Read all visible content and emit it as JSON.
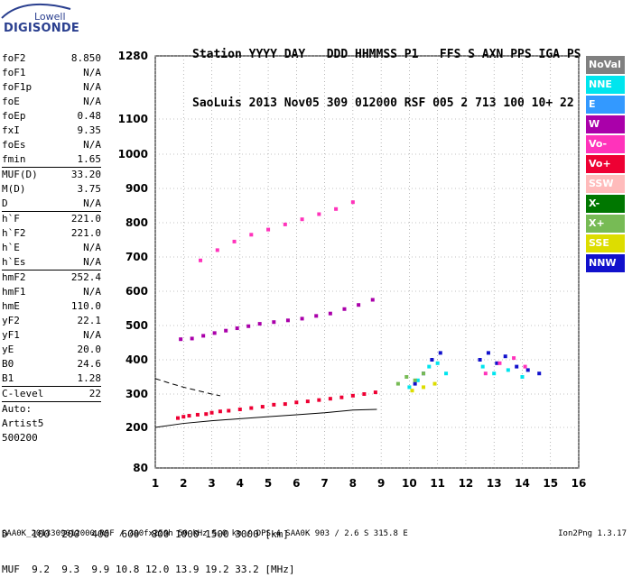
{
  "logo": {
    "line1": "Lowell",
    "line2": "DIGISONDE"
  },
  "header": {
    "row1": "Station YYYY DAY   DDD HHMMSS P1   FFS S AXN PPS IGA PS",
    "row2": "SaoLuis 2013 Nov05 309 012000 RSF 005 2 713 100 10+ 22"
  },
  "params": [
    {
      "k": "foF2",
      "v": "8.850",
      "sep": false
    },
    {
      "k": "foF1",
      "v": "N/A",
      "sep": false
    },
    {
      "k": "foF1p",
      "v": "N/A",
      "sep": false
    },
    {
      "k": "foE",
      "v": "N/A",
      "sep": false
    },
    {
      "k": "foEp",
      "v": "0.48",
      "sep": false
    },
    {
      "k": "fxI",
      "v": "9.35",
      "sep": false
    },
    {
      "k": "foEs",
      "v": "N/A",
      "sep": false
    },
    {
      "k": "fmin",
      "v": "1.65",
      "sep": false
    },
    {
      "k": "MUF(D)",
      "v": "33.20",
      "sep": true
    },
    {
      "k": "M(D)",
      "v": "3.75",
      "sep": false
    },
    {
      "k": "D",
      "v": "N/A",
      "sep": false
    },
    {
      "k": "h`F",
      "v": "221.0",
      "sep": true
    },
    {
      "k": "h`F2",
      "v": "221.0",
      "sep": false
    },
    {
      "k": "h`E",
      "v": "N/A",
      "sep": false
    },
    {
      "k": "h`Es",
      "v": "N/A",
      "sep": false
    },
    {
      "k": "hmF2",
      "v": "252.4",
      "sep": true
    },
    {
      "k": "hmF1",
      "v": "N/A",
      "sep": false
    },
    {
      "k": "hmE",
      "v": "110.0",
      "sep": false
    },
    {
      "k": "yF2",
      "v": "22.1",
      "sep": false
    },
    {
      "k": "yF1",
      "v": "N/A",
      "sep": false
    },
    {
      "k": "yE",
      "v": "20.0",
      "sep": false
    },
    {
      "k": "B0",
      "v": "24.6",
      "sep": false
    },
    {
      "k": "B1",
      "v": "1.28",
      "sep": false
    },
    {
      "k": "C-level",
      "v": "22",
      "sep": true
    },
    {
      "k": "Auto:",
      "v": "",
      "sep": true
    },
    {
      "k": "Artist5",
      "v": "",
      "sep": false
    },
    {
      "k": "500200",
      "v": "",
      "sep": false
    }
  ],
  "legend": [
    {
      "label": "NoVal",
      "bg": "#808080",
      "fg": "#ffffff"
    },
    {
      "label": "NNE",
      "bg": "#00e5ee",
      "fg": "#ffffff"
    },
    {
      "label": "E",
      "bg": "#3399ff",
      "fg": "#ffffff"
    },
    {
      "label": "W",
      "bg": "#aa00aa",
      "fg": "#ffffff"
    },
    {
      "label": "Vo-",
      "bg": "#ff33bb",
      "fg": "#ffffff"
    },
    {
      "label": "Vo+",
      "bg": "#ee0033",
      "fg": "#ffffff"
    },
    {
      "label": "SSW",
      "bg": "#ffbbbb",
      "fg": "#ffffff"
    },
    {
      "label": "X-",
      "bg": "#007700",
      "fg": "#ffffff"
    },
    {
      "label": "X+",
      "bg": "#77bb55",
      "fg": "#ffffff"
    },
    {
      "label": "SSE",
      "bg": "#dddd00",
      "fg": "#ffffff"
    },
    {
      "label": "NNW",
      "bg": "#1111cc",
      "fg": "#ffffff"
    }
  ],
  "dmuf": {
    "row1": "D    100  200  400  600  800 1000 1500 3000 [km]",
    "row2": "MUF  9.2  9.3  9.9 10.8 12.0 13.9 19.2 33.2 [MHz]"
  },
  "footer": "SAA0K_2013309012000.RSF / 300fx256h 50 kHz 5.0 km / DPS-4 SAA0K 903 / 2.6 S 315.8 E",
  "version": "Ion2Png 1.3.17",
  "chart_data": {
    "type": "scatter",
    "x_ticks": [
      1,
      2,
      3,
      4,
      5,
      6,
      7,
      8,
      9,
      10,
      11,
      12,
      13,
      14,
      15,
      16
    ],
    "y_ticks": [
      80,
      200,
      300,
      400,
      500,
      600,
      700,
      800,
      900,
      1000,
      1100,
      1280
    ],
    "xlim": [
      1,
      16
    ],
    "ylim": [
      80,
      1280
    ],
    "grid": true,
    "series": [
      {
        "name": "Vo+",
        "color": "#ee0033",
        "x": [
          1.8,
          2.0,
          2.2,
          2.5,
          2.8,
          3.0,
          3.3,
          3.6,
          4.0,
          4.4,
          4.8,
          5.2,
          5.6,
          6.0,
          6.4,
          6.8,
          7.2,
          7.6,
          8.0,
          8.4,
          8.8
        ],
        "y": [
          228,
          232,
          235,
          238,
          240,
          244,
          248,
          250,
          254,
          258,
          262,
          268,
          270,
          275,
          278,
          282,
          286,
          290,
          295,
          300,
          305
        ]
      },
      {
        "name": "W",
        "color": "#aa00aa",
        "x": [
          1.9,
          2.3,
          2.7,
          3.1,
          3.5,
          3.9,
          4.3,
          4.7,
          5.2,
          5.7,
          6.2,
          6.7,
          7.2,
          7.7,
          8.2,
          8.7
        ],
        "y": [
          460,
          462,
          470,
          478,
          485,
          492,
          498,
          505,
          510,
          515,
          520,
          528,
          535,
          548,
          560,
          575
        ]
      },
      {
        "name": "NNW",
        "color": "#1111cc",
        "x": [
          10.2,
          10.5,
          10.8,
          11.1,
          12.5,
          12.8,
          13.1,
          13.4,
          13.8,
          14.2,
          14.6
        ],
        "y": [
          330,
          360,
          400,
          420,
          400,
          420,
          390,
          410,
          380,
          370,
          360
        ]
      },
      {
        "name": "NNE",
        "color": "#00e5ee",
        "x": [
          10.0,
          10.3,
          10.7,
          11.0,
          11.3,
          12.6,
          13.0,
          13.5,
          14.0
        ],
        "y": [
          320,
          340,
          380,
          390,
          360,
          380,
          360,
          370,
          350
        ]
      },
      {
        "name": "X+",
        "color": "#77bb55",
        "x": [
          9.6,
          9.9,
          10.2,
          10.5
        ],
        "y": [
          330,
          350,
          340,
          360
        ]
      },
      {
        "name": "SSE",
        "color": "#dddd00",
        "x": [
          10.1,
          10.5,
          10.9
        ],
        "y": [
          310,
          320,
          330
        ]
      },
      {
        "name": "Vo-",
        "color": "#ff33bb",
        "x": [
          2.6,
          3.2,
          3.8,
          4.4,
          5.0,
          5.6,
          6.2,
          6.8,
          7.4,
          8.0,
          12.7,
          13.2,
          13.7,
          14.1
        ],
        "y": [
          690,
          720,
          745,
          765,
          780,
          795,
          810,
          825,
          840,
          860,
          360,
          390,
          405,
          380
        ]
      }
    ],
    "curves": [
      {
        "name": "profile",
        "color": "#000000",
        "dashed": false,
        "x": [
          1.0,
          2.0,
          3.0,
          4.0,
          5.0,
          6.0,
          7.0,
          8.0,
          8.85
        ],
        "y": [
          200,
          212,
          220,
          226,
          232,
          238,
          244,
          252,
          254
        ]
      },
      {
        "name": "profile-upper",
        "color": "#000000",
        "dashed": true,
        "x": [
          1.0,
          1.5,
          2.0,
          2.5,
          3.0,
          3.3
        ],
        "y": [
          345,
          332,
          320,
          310,
          300,
          295
        ]
      }
    ]
  }
}
